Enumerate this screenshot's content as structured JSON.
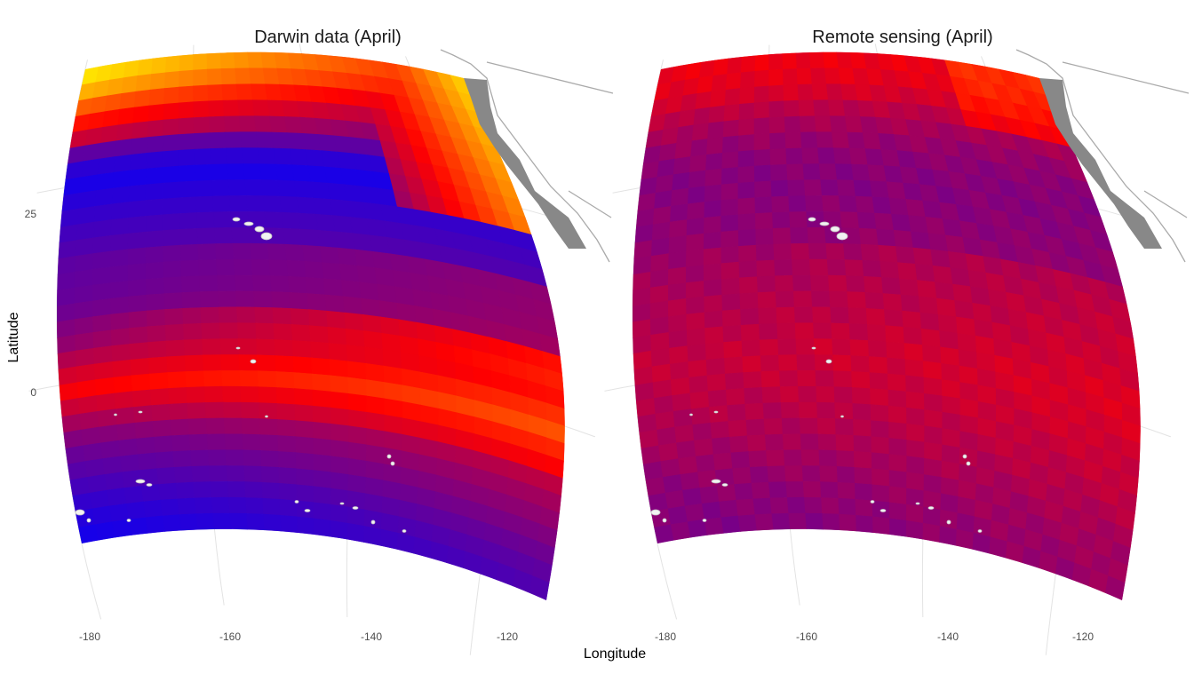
{
  "figure": {
    "xlabel": "Longitude",
    "ylabel": "Latitude",
    "x_ticks": [
      "-180",
      "-160",
      "-140",
      "-120"
    ],
    "y_ticks": [
      "25",
      "0"
    ]
  },
  "panels": [
    {
      "id": "darwin",
      "title": "Darwin data (April)"
    },
    {
      "id": "remote",
      "title": "Remote sensing (April)"
    }
  ],
  "colors": {
    "scale_low": "#0000ff",
    "scale_mid": "#ff0000",
    "scale_high": "#ffff00",
    "land": "#888888",
    "coastline": "#aaaaaa",
    "islands": "#f2f2f2",
    "graticule": "#e3e3e3"
  },
  "chart_data": {
    "type": "heatmap",
    "projection": "oblique conic (curved graticule)",
    "lon_range": [
      -180,
      -110
    ],
    "lat_range": [
      -20,
      40
    ],
    "color_scale": [
      "blue",
      "red",
      "yellow"
    ],
    "legend": "none",
    "grid": true,
    "panels": [
      {
        "title": "Darwin data (April)",
        "lat_profile": [
          {
            "lat": 40,
            "value": 0.95
          },
          {
            "lat": 37,
            "value": 0.8
          },
          {
            "lat": 34,
            "value": 0.55
          },
          {
            "lat": 31,
            "value": 0.35
          },
          {
            "lat": 28,
            "value": 0.1
          },
          {
            "lat": 25,
            "value": 0.05
          },
          {
            "lat": 20,
            "value": 0.12
          },
          {
            "lat": 15,
            "value": 0.18
          },
          {
            "lat": 10,
            "value": 0.2
          },
          {
            "lat": 5,
            "value": 0.28
          },
          {
            "lat": 2,
            "value": 0.38
          },
          {
            "lat": -1,
            "value": 0.48
          },
          {
            "lat": -4,
            "value": 0.35
          },
          {
            "lat": -8,
            "value": 0.22
          },
          {
            "lat": -12,
            "value": 0.15
          },
          {
            "lat": -16,
            "value": 0.08
          },
          {
            "lat": -20,
            "value": 0.03
          }
        ]
      },
      {
        "title": "Remote sensing (April)",
        "lat_profile": [
          {
            "lat": 40,
            "value": 0.45
          },
          {
            "lat": 36,
            "value": 0.42
          },
          {
            "lat": 32,
            "value": 0.32
          },
          {
            "lat": 28,
            "value": 0.26
          },
          {
            "lat": 24,
            "value": 0.24
          },
          {
            "lat": 18,
            "value": 0.26
          },
          {
            "lat": 12,
            "value": 0.3
          },
          {
            "lat": 6,
            "value": 0.33
          },
          {
            "lat": 2,
            "value": 0.36
          },
          {
            "lat": -2,
            "value": 0.34
          },
          {
            "lat": -8,
            "value": 0.3
          },
          {
            "lat": -14,
            "value": 0.25
          },
          {
            "lat": -20,
            "value": 0.22
          }
        ]
      }
    ]
  }
}
